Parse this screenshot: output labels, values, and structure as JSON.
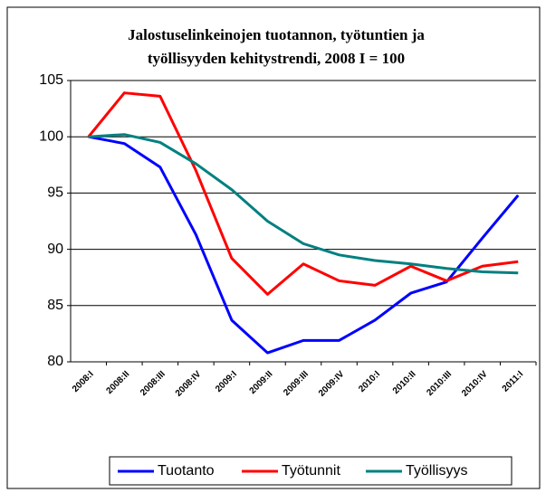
{
  "chart_data": {
    "type": "line",
    "title": [
      "Jalostuselinkeinojen tuotannon, työtuntien ja",
      "työllisyyden kehitystrendi, 2008 I = 100"
    ],
    "categories": [
      "2008:I",
      "2008:II",
      "2008:III",
      "2008:IV",
      "2009:I",
      "2009:II",
      "2009:III",
      "2009:IV",
      "2010:I",
      "2010:II",
      "2010:III",
      "2010:IV",
      "2011:I"
    ],
    "series": [
      {
        "name": "Tuotanto",
        "color": "#0000ff",
        "values": [
          100,
          99.4,
          97.3,
          91.3,
          83.7,
          80.8,
          81.9,
          81.9,
          83.7,
          86.1,
          87.1,
          91.0,
          94.8
        ]
      },
      {
        "name": "Työtunnit",
        "color": "#ff0000",
        "values": [
          100,
          103.9,
          103.6,
          97.0,
          89.2,
          86.0,
          88.7,
          87.2,
          86.8,
          88.5,
          87.2,
          88.5,
          88.9
        ]
      },
      {
        "name": "Työllisyys",
        "color": "#008080",
        "values": [
          100,
          100.2,
          99.5,
          97.6,
          95.3,
          92.5,
          90.5,
          89.5,
          89.0,
          88.7,
          88.3,
          88.0,
          87.9
        ]
      }
    ],
    "ylim": [
      80,
      105
    ],
    "yticks": [
      80,
      85,
      90,
      95,
      100,
      105
    ],
    "grid": true,
    "legend": "bottom"
  }
}
